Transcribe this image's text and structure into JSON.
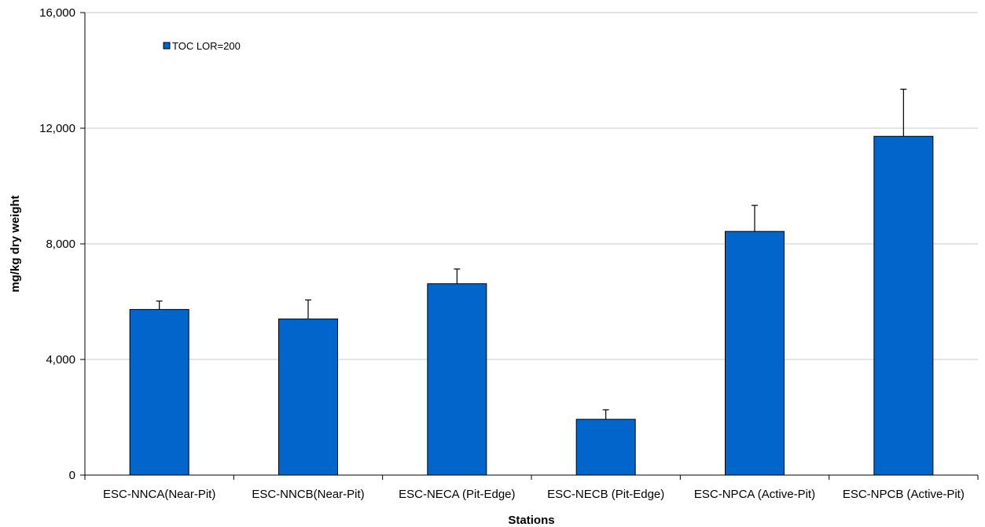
{
  "chart_data": {
    "type": "bar",
    "categories": [
      "ESC-NNCA(Near-Pit)",
      "ESC-NNCB(Near-Pit)",
      "ESC-NECA (Pit-Edge)",
      "ESC-NECB (Pit-Edge)",
      "ESC-NPCA (Active-Pit)",
      "ESC-NPCB (Active-Pit)"
    ],
    "series": [
      {
        "name": "TOC LOR=200",
        "values": [
          5730,
          5400,
          6620,
          1930,
          8430,
          11720
        ],
        "error_upper": [
          290,
          660,
          510,
          330,
          900,
          1630
        ],
        "color": "#0066CC"
      }
    ],
    "title": "",
    "xlabel": "Stations",
    "ylabel": "mg/kg dry weight",
    "ylim": [
      0,
      16000
    ],
    "yticks": [
      0,
      4000,
      8000,
      12000,
      16000
    ],
    "ytick_labels": [
      "0",
      "4,000",
      "8,000",
      "12,000",
      "16,000"
    ],
    "grid": true,
    "legend_position": "top-left"
  }
}
